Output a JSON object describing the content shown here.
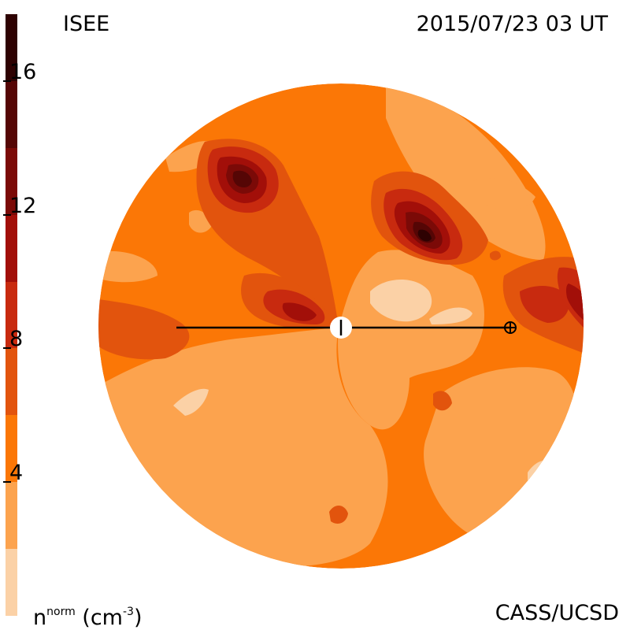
{
  "header": {
    "org": "ISEE",
    "datetime": "2015/07/23 03 UT"
  },
  "footer": {
    "unit_base": "n",
    "unit_sup": "norm",
    "unit_rest": " (cm",
    "unit_exp": "-3",
    "unit_close": ")",
    "credit": "CASS/UCSD"
  },
  "colorbar": {
    "ticks": [
      "16",
      "12",
      "8",
      "4"
    ],
    "tick_values": [
      16,
      12,
      8,
      4
    ],
    "range": [
      0,
      18
    ],
    "levels": [
      {
        "from": 0,
        "to": 2,
        "color": "#fbd1a6"
      },
      {
        "from": 2,
        "to": 4,
        "color": "#fca34e"
      },
      {
        "from": 4,
        "to": 6,
        "color": "#fb7706"
      },
      {
        "from": 6,
        "to": 8,
        "color": "#e2540d"
      },
      {
        "from": 8,
        "to": 10,
        "color": "#c82a0f"
      },
      {
        "from": 10,
        "to": 12,
        "color": "#a20f09"
      },
      {
        "from": 12,
        "to": 14,
        "color": "#7b0a07"
      },
      {
        "from": 14,
        "to": 16,
        "color": "#550605"
      },
      {
        "from": 16,
        "to": 18,
        "color": "#2e0202"
      }
    ]
  },
  "map": {
    "background_color": "#fb7706"
  }
}
